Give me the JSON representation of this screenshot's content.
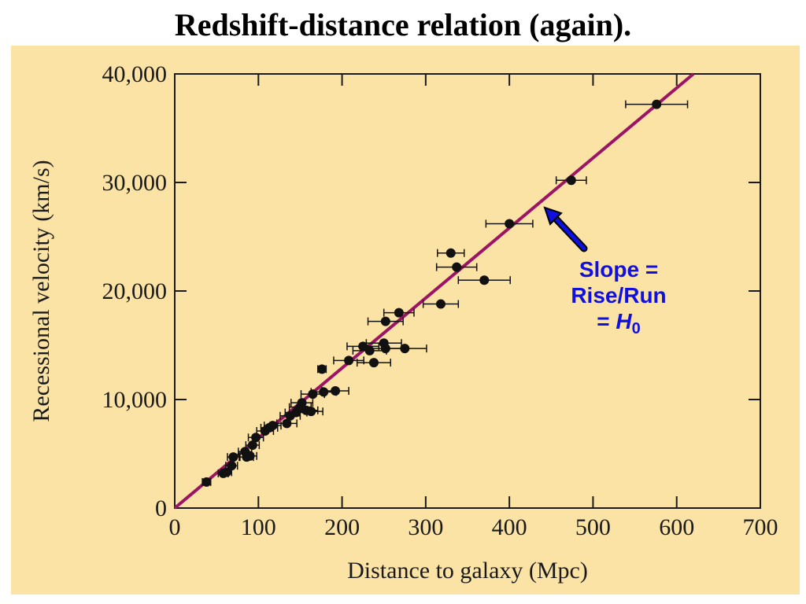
{
  "slide": {
    "title": "Redshift-distance relation (again)."
  },
  "colors": {
    "panel_background": "#fbe3a6",
    "fit_line": "#9b1466",
    "points": "#111111",
    "annotation": "#1010e0"
  },
  "chart_data": {
    "type": "scatter",
    "title": "",
    "xlabel": "Distance to galaxy (Mpc)",
    "ylabel": "Recessional velocity (km/s)",
    "xlim": [
      0,
      700
    ],
    "ylim": [
      0,
      40000
    ],
    "x_ticks": [
      0,
      100,
      200,
      300,
      400,
      500,
      600,
      700
    ],
    "x_tick_labels": [
      "0",
      "100",
      "200",
      "300",
      "400",
      "500",
      "600",
      "700"
    ],
    "y_ticks": [
      0,
      10000,
      20000,
      30000,
      40000
    ],
    "y_tick_labels": [
      "0",
      "10,000",
      "20,000",
      "30,000",
      "40,000"
    ],
    "grid": false,
    "fit_line": {
      "x": [
        0,
        620
      ],
      "y": [
        0,
        40000
      ]
    },
    "series": [
      {
        "points": [
          {
            "x": 38,
            "y": 2400,
            "xerr": 5
          },
          {
            "x": 58,
            "y": 3200,
            "xerr": 6
          },
          {
            "x": 62,
            "y": 3300,
            "xerr": 6
          },
          {
            "x": 68,
            "y": 3900,
            "xerr": 7
          },
          {
            "x": 70,
            "y": 4700,
            "xerr": 7
          },
          {
            "x": 84,
            "y": 5200,
            "xerr": 8
          },
          {
            "x": 86,
            "y": 4700,
            "xerr": 8
          },
          {
            "x": 90,
            "y": 4800,
            "xerr": 8
          },
          {
            "x": 93,
            "y": 5800,
            "xerr": 8
          },
          {
            "x": 97,
            "y": 6500,
            "xerr": 9
          },
          {
            "x": 108,
            "y": 7100,
            "xerr": 10
          },
          {
            "x": 113,
            "y": 7400,
            "xerr": 10
          },
          {
            "x": 117,
            "y": 7600,
            "xerr": 10
          },
          {
            "x": 134,
            "y": 7800,
            "xerr": 12
          },
          {
            "x": 138,
            "y": 8500,
            "xerr": 12
          },
          {
            "x": 145,
            "y": 8800,
            "xerr": 13
          },
          {
            "x": 150,
            "y": 9300,
            "xerr": 13
          },
          {
            "x": 152,
            "y": 9700,
            "xerr": 13
          },
          {
            "x": 157,
            "y": 9000,
            "xerr": 14
          },
          {
            "x": 163,
            "y": 8900,
            "xerr": 14
          },
          {
            "x": 165,
            "y": 10500,
            "xerr": 14
          },
          {
            "x": 176,
            "y": 12800,
            "xerr": 5
          },
          {
            "x": 178,
            "y": 10700,
            "xerr": 15
          },
          {
            "x": 192,
            "y": 10800,
            "xerr": 16
          },
          {
            "x": 208,
            "y": 13600,
            "xerr": 18
          },
          {
            "x": 225,
            "y": 14900,
            "xerr": 19
          },
          {
            "x": 233,
            "y": 14500,
            "xerr": 20
          },
          {
            "x": 238,
            "y": 13400,
            "xerr": 20
          },
          {
            "x": 250,
            "y": 15200,
            "xerr": 21
          },
          {
            "x": 252,
            "y": 14700,
            "xerr": 21
          },
          {
            "x": 252,
            "y": 17200,
            "xerr": 21
          },
          {
            "x": 268,
            "y": 18000,
            "xerr": 18
          },
          {
            "x": 275,
            "y": 14700,
            "xerr": 26
          },
          {
            "x": 318,
            "y": 18800,
            "xerr": 21
          },
          {
            "x": 330,
            "y": 23500,
            "xerr": 16
          },
          {
            "x": 337,
            "y": 22200,
            "xerr": 24
          },
          {
            "x": 370,
            "y": 21000,
            "xerr": 31
          },
          {
            "x": 400,
            "y": 26200,
            "xerr": 28
          },
          {
            "x": 474,
            "y": 30200,
            "xerr": 18
          },
          {
            "x": 576,
            "y": 37200,
            "xerr": 37
          }
        ]
      }
    ]
  },
  "annotation": {
    "line1": "Slope =",
    "line2": "Rise/Run",
    "line3_prefix": "= ",
    "line3_symbol": "H",
    "line3_subscript": "0"
  }
}
